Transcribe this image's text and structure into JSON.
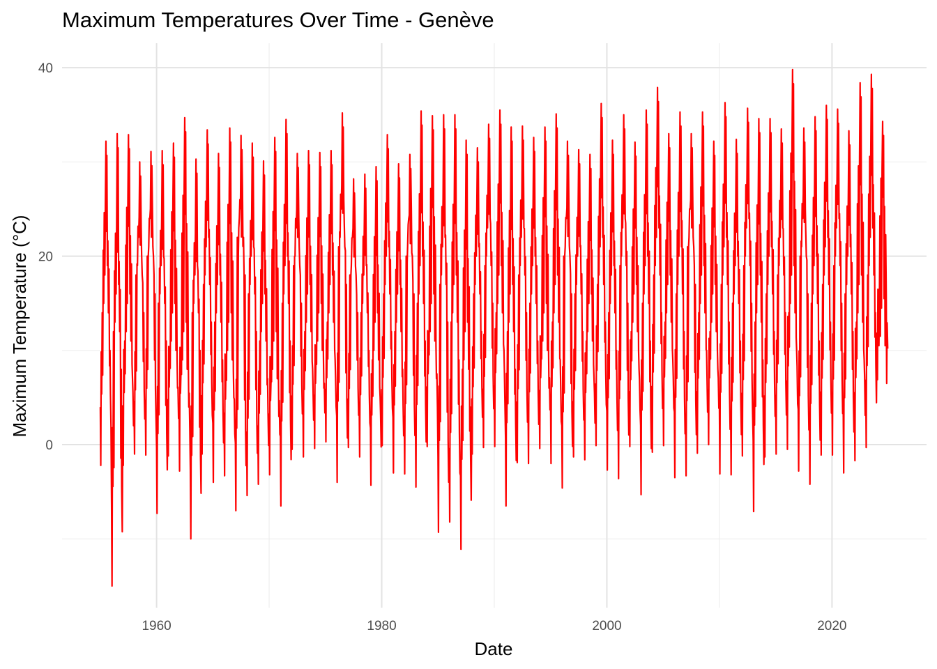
{
  "chart_data": {
    "type": "line",
    "title": "Maximum Temperatures Over Time - Genève",
    "xlabel": "Date",
    "ylabel": "Maximum Temperature (°C)",
    "x_range": [
      "1955-01-01",
      "2024-12-31"
    ],
    "xlim": [
      1951.6,
      2028.4
    ],
    "ylim": [
      -17.3,
      42.6
    ],
    "x_ticks": [
      1960,
      1980,
      2000,
      2020
    ],
    "y_ticks": [
      0,
      20,
      40
    ],
    "x_minor_ticks": [
      1970,
      1990,
      2010
    ],
    "y_minor_ticks": [
      -10,
      10,
      30
    ],
    "grid": true,
    "legend": "none",
    "line_color": "#ff0000",
    "series": [
      {
        "x_start": "1955-01-01",
        "resolution": "monthly extremes (annual max ~Jul, annual min ~Jan)",
        "annual_max": [
          32.2,
          33.0,
          32.9,
          30.0,
          31.1,
          31.2,
          32.0,
          34.7,
          30.3,
          33.4,
          30.9,
          33.6,
          32.8,
          32.0,
          30.1,
          32.6,
          34.5,
          30.9,
          31.2,
          31.0,
          31.2,
          35.2,
          28.2,
          28.7,
          29.5,
          32.9,
          29.8,
          30.8,
          35.4,
          34.9,
          35.0,
          35.0,
          32.3,
          31.5,
          34.0,
          35.5,
          33.7,
          33.8,
          32.6,
          33.7,
          35.1,
          32.2,
          31.3,
          30.8,
          36.2,
          32.3,
          35.0,
          32.1,
          35.5,
          37.9,
          33.0,
          35.3,
          33.0,
          35.3,
          32.2,
          36.3,
          32.4,
          35.7,
          34.6,
          34.6,
          33.5,
          39.8,
          33.6,
          34.8,
          36.0,
          35.6,
          33.3,
          38.4,
          39.3,
          34.3
        ],
        "annual_min": [
          -2.2,
          -15.0,
          -2.2,
          -1.0,
          -1.1,
          -7.3,
          -1.2,
          -2.8,
          -10.0,
          -1.0,
          -4.0,
          -3.3,
          -7.0,
          -5.4,
          -4.2,
          -3.2,
          -6.5,
          -0.5,
          -1.3,
          -0.4,
          0.3,
          -4.0,
          -0.3,
          -1.3,
          -4.3,
          -0.1,
          -3.0,
          -3.1,
          -4.5,
          -0.2,
          -9.3,
          -8.2,
          -11.1,
          -1.0,
          -0.3,
          -0.2,
          -6.5,
          -1.9,
          -2.0,
          -0.4,
          -2.0,
          -4.6,
          -1.3,
          -1.6,
          -0.1,
          -2.7,
          -3.6,
          -0.2,
          -5.3,
          -0.8,
          -0.1,
          -3.5,
          -3.3,
          -0.9,
          0.0,
          -3.1,
          -3.2,
          -1.2,
          -7.1,
          -1.3,
          -1.0,
          -0.5,
          -2.8,
          -4.2,
          -1.1,
          -1.1,
          -3.0,
          -1.7,
          -0.3,
          6.9
        ],
        "mid_samples": [
          14,
          12,
          11,
          18,
          20,
          15,
          10,
          8,
          14,
          17,
          13,
          9,
          22,
          16,
          11,
          7,
          15,
          19,
          12,
          10,
          13,
          21,
          18,
          14,
          9,
          16,
          12,
          20,
          15,
          11,
          17,
          13,
          8,
          16,
          19,
          14,
          12,
          18,
          15,
          10,
          13,
          20,
          16,
          11,
          17,
          14,
          19,
          12,
          15,
          18,
          13,
          16,
          21,
          14,
          12,
          17,
          15,
          19,
          13,
          16,
          18,
          14,
          20,
          15,
          17,
          19,
          16,
          13,
          18,
          10.5
        ]
      }
    ]
  }
}
